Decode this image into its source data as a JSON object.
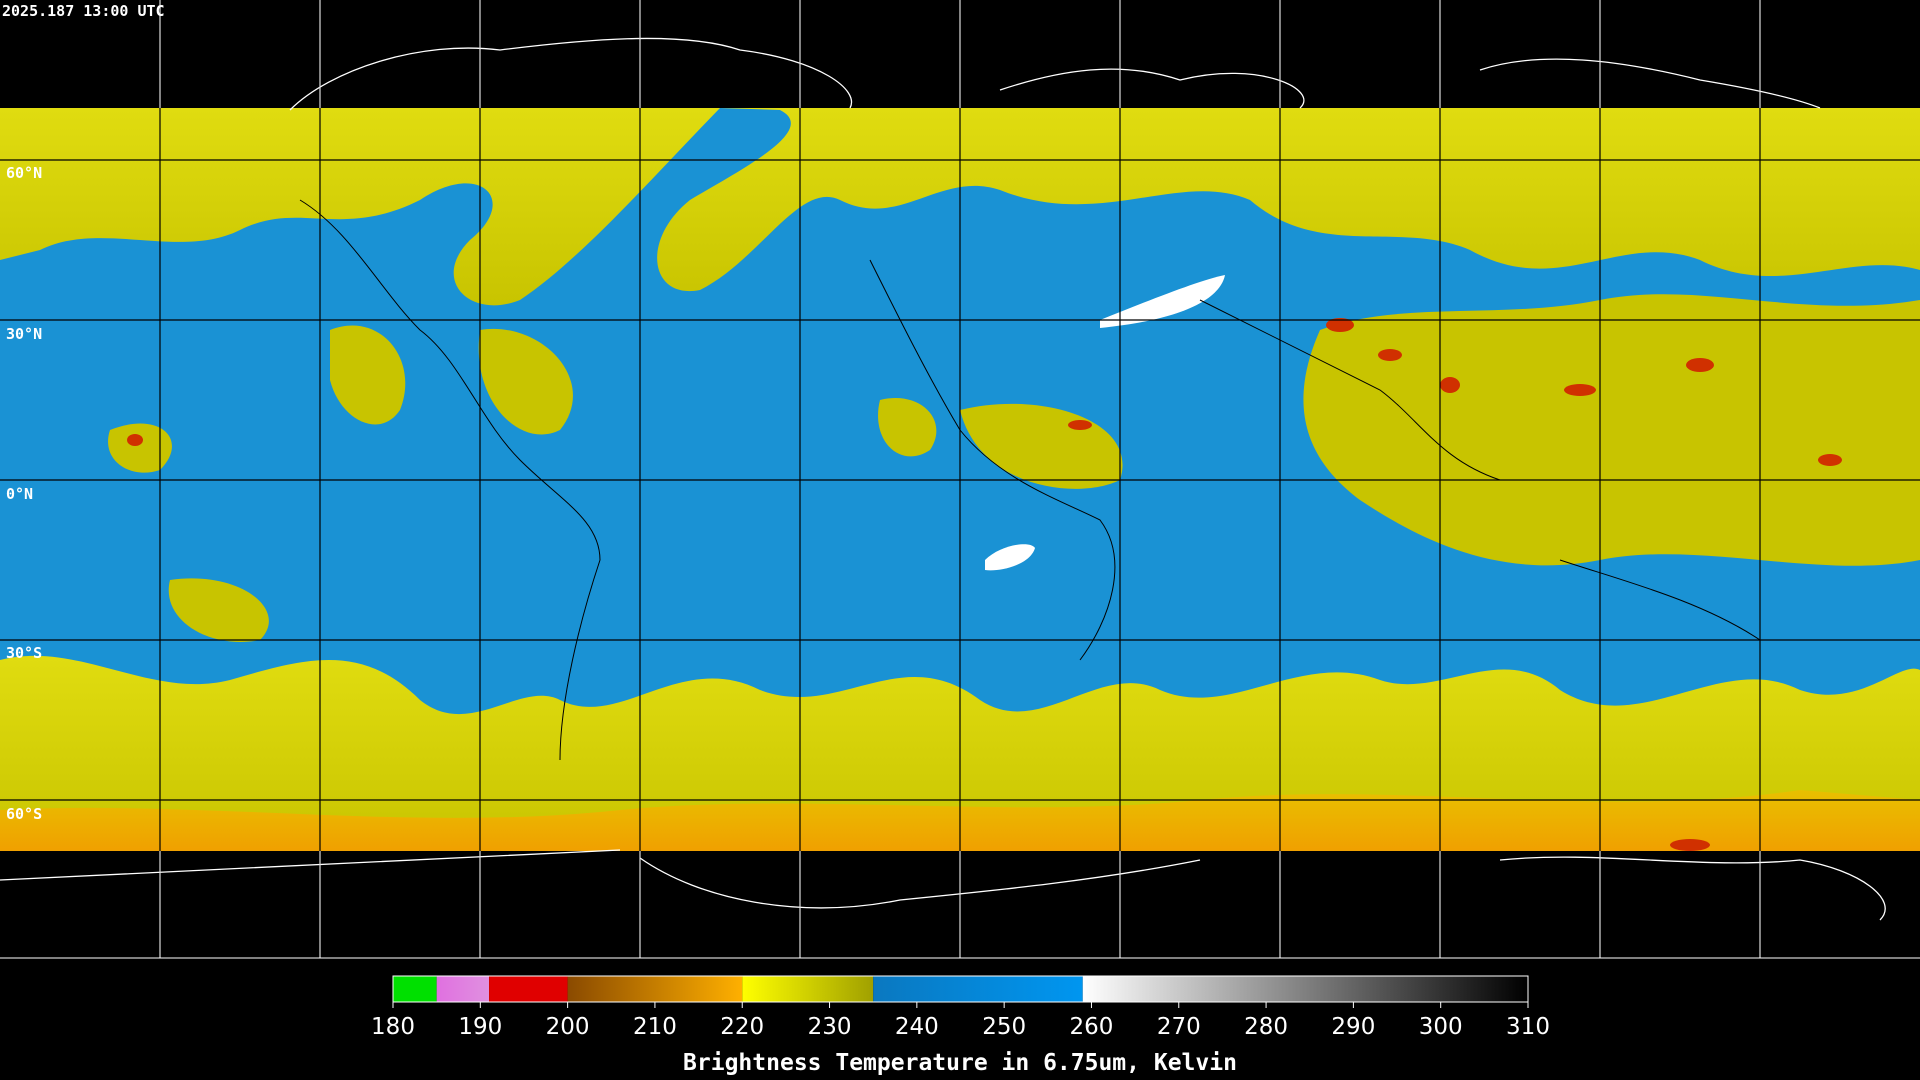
{
  "header": {
    "timestamp": "2025.187 13:00 UTC"
  },
  "map": {
    "lat_labels": [
      "60°N",
      "30°N",
      "0°N",
      "30°S",
      "60°S"
    ]
  },
  "colorbar": {
    "range": [
      180,
      310
    ],
    "ticks": [
      180,
      190,
      200,
      210,
      220,
      230,
      240,
      250,
      260,
      270,
      280,
      290,
      300,
      310
    ],
    "segments": [
      {
        "from": 180,
        "to": 185,
        "colors": [
          "#00e000",
          "#00e000"
        ]
      },
      {
        "from": 185,
        "to": 191,
        "colors": [
          "#e070e0",
          "#e090e0"
        ]
      },
      {
        "from": 191,
        "to": 200,
        "colors": [
          "#e00000",
          "#e00000"
        ]
      },
      {
        "from": 200,
        "to": 220,
        "colors": [
          "#8a4a00",
          "#ffb000"
        ]
      },
      {
        "from": 220,
        "to": 235,
        "colors": [
          "#ffff00",
          "#a0a000"
        ]
      },
      {
        "from": 235,
        "to": 259,
        "colors": [
          "#0a78c0",
          "#0096f0"
        ]
      },
      {
        "from": 259,
        "to": 310,
        "colors": [
          "#ffffff",
          "#000000"
        ]
      }
    ],
    "label": "Brightness Temperature in 6.75um, Kelvin"
  }
}
